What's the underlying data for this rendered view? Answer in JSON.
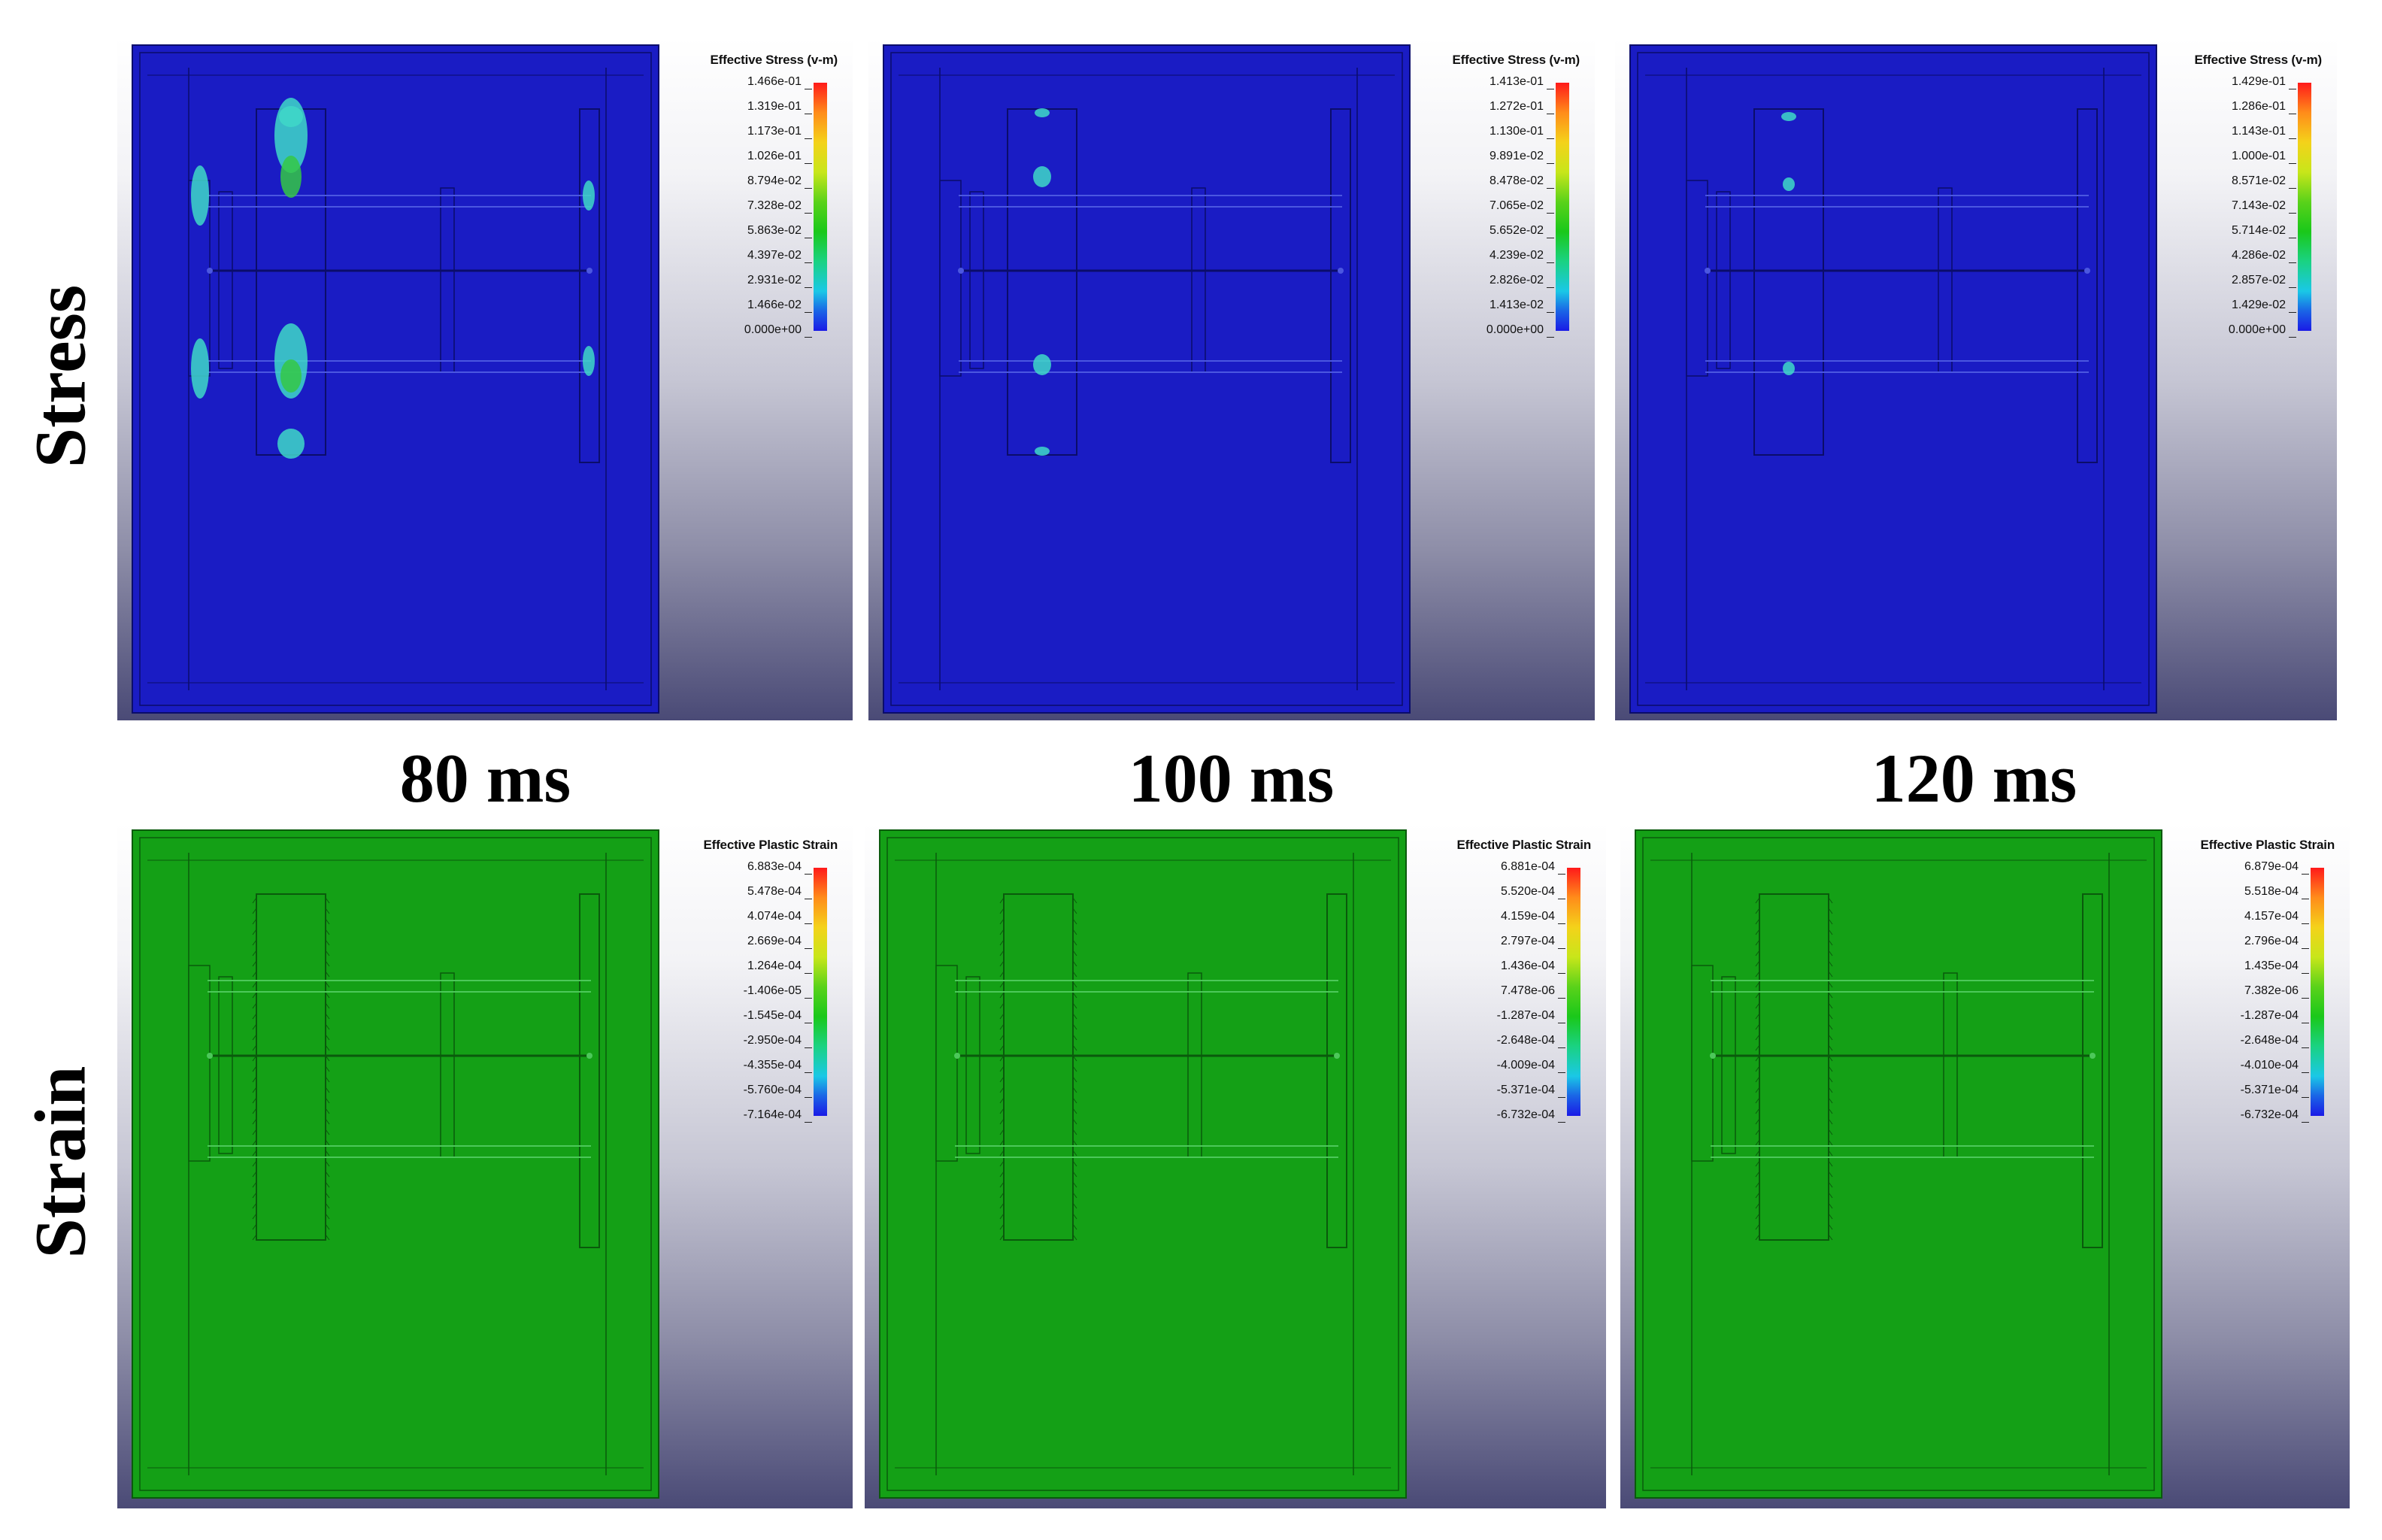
{
  "row_labels": {
    "stress": "Stress",
    "strain": "Strain"
  },
  "time_labels": [
    "80 ms",
    "100 ms",
    "120 ms"
  ],
  "colors": {
    "stress_part": "#1a1cc4",
    "strain_part": "#14a016",
    "hotspot_green": "#35c845",
    "hotspot_cyan": "#40d8c8"
  },
  "panels": [
    {
      "id": "stress-80",
      "legend_title": "Effective Stress (v-m)",
      "legend_values": [
        "1.466e-01",
        "1.319e-01",
        "1.173e-01",
        "1.026e-01",
        "8.794e-02",
        "7.328e-02",
        "5.863e-02",
        "4.397e-02",
        "2.931e-02",
        "1.466e-02",
        "0.000e+00"
      ]
    },
    {
      "id": "stress-100",
      "legend_title": "Effective Stress (v-m)",
      "legend_values": [
        "1.413e-01",
        "1.272e-01",
        "1.130e-01",
        "9.891e-02",
        "8.478e-02",
        "7.065e-02",
        "5.652e-02",
        "4.239e-02",
        "2.826e-02",
        "1.413e-02",
        "0.000e+00"
      ]
    },
    {
      "id": "stress-120",
      "legend_title": "Effective Stress (v-m)",
      "legend_values": [
        "1.429e-01",
        "1.286e-01",
        "1.143e-01",
        "1.000e-01",
        "8.571e-02",
        "7.143e-02",
        "5.714e-02",
        "4.286e-02",
        "2.857e-02",
        "1.429e-02",
        "0.000e+00"
      ]
    },
    {
      "id": "strain-80",
      "legend_title": "Effective Plastic Strain",
      "legend_values": [
        "6.883e-04",
        "5.478e-04",
        "4.074e-04",
        "2.669e-04",
        "1.264e-04",
        "-1.406e-05",
        "-1.545e-04",
        "-2.950e-04",
        "-4.355e-04",
        "-5.760e-04",
        "-7.164e-04"
      ]
    },
    {
      "id": "strain-100",
      "legend_title": "Effective Plastic Strain",
      "legend_values": [
        "6.881e-04",
        "5.520e-04",
        "4.159e-04",
        "2.797e-04",
        "1.436e-04",
        "7.478e-06",
        "-1.287e-04",
        "-2.648e-04",
        "-4.009e-04",
        "-5.371e-04",
        "-6.732e-04"
      ]
    },
    {
      "id": "strain-120",
      "legend_title": "Effective Plastic Strain",
      "legend_values": [
        "6.879e-04",
        "5.518e-04",
        "4.157e-04",
        "2.796e-04",
        "1.435e-04",
        "7.382e-06",
        "-1.287e-04",
        "-2.648e-04",
        "-4.010e-04",
        "-5.371e-04",
        "-6.732e-04"
      ]
    }
  ]
}
